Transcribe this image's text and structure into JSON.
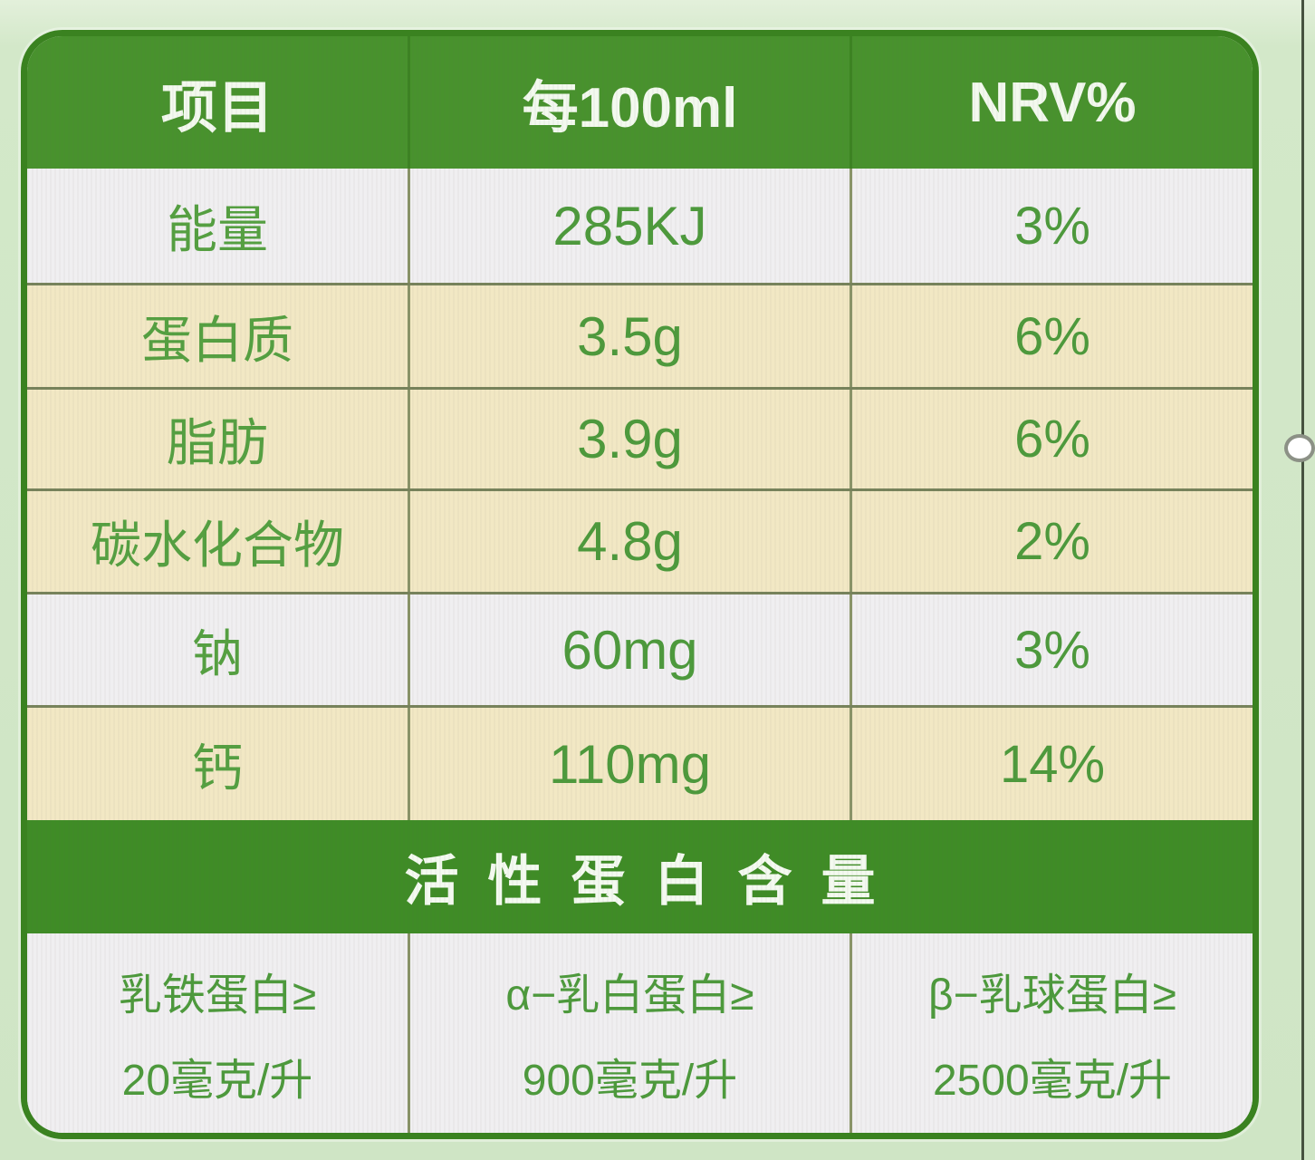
{
  "page": {
    "background_color": "#cfe5c5"
  },
  "nutrition_table": {
    "header": {
      "columns": [
        "项目",
        "每100ml",
        "NRV%"
      ]
    },
    "rows": [
      {
        "item": "能量",
        "per_100ml": "285KJ",
        "nrv": "3%"
      },
      {
        "item": "蛋白质",
        "per_100ml": "3.5g",
        "nrv": "6%"
      },
      {
        "item": "脂肪",
        "per_100ml": "3.9g",
        "nrv": "6%"
      },
      {
        "item": "碳水化合物",
        "per_100ml": "4.8g",
        "nrv": "2%"
      },
      {
        "item": "钠",
        "per_100ml": "60mg",
        "nrv": "3%"
      },
      {
        "item": "钙",
        "per_100ml": "110mg",
        "nrv": "14%"
      }
    ],
    "section_title": "活性蛋白含量",
    "active_proteins": [
      {
        "name_line": "乳铁蛋白≥",
        "value_line": "20毫克/升"
      },
      {
        "name_line": "α−乳白蛋白≥",
        "value_line": "900毫克/升"
      },
      {
        "name_line": "β−乳球蛋白≥",
        "value_line": "2500毫克/升"
      }
    ]
  },
  "colors": {
    "header_green": "#48922d",
    "band_green": "#3f8c26",
    "border_green": "#3a8220",
    "row_white": "#f0eff1",
    "row_yellow": "#f2e8c4",
    "text_green": "#4d9a3c",
    "divider_olive": "#77835b",
    "page_light_green": "#cfe5c5",
    "crop_line_dark": "#46523f",
    "handle_fill": "#ffffff",
    "handle_border": "#8c9186"
  }
}
